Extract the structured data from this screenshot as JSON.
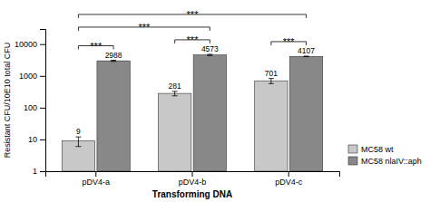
{
  "chart_data": {
    "type": "bar",
    "categories": [
      "pDV4-a",
      "pDV4-b",
      "pDV4-c"
    ],
    "series": [
      {
        "name": "MC58 wt",
        "color": "#c8c8c8",
        "values": [
          9,
          281,
          701
        ],
        "errors": [
          3,
          45,
          130
        ]
      },
      {
        "name": "MC58 nlaIV::aph",
        "color": "#888888",
        "values": [
          2988,
          4573,
          4107
        ],
        "errors": [
          120,
          220,
          90
        ]
      }
    ],
    "xlabel": "Transforming DNA",
    "ylabel": "Resistant CFU/10E10 total CFU",
    "log": "y",
    "ylim": [
      1,
      30000
    ],
    "yticks": [
      1,
      10,
      100,
      1000,
      10000
    ],
    "legend": "lower right",
    "data_labels": true,
    "annotations": [
      {
        "text": "***",
        "between": [
          [
            "pDV4-a",
            "MC58 wt"
          ],
          [
            "pDV4-a",
            "MC58 nlaIV::aph"
          ]
        ]
      },
      {
        "text": "***",
        "between": [
          [
            "pDV4-b",
            "MC58 wt"
          ],
          [
            "pDV4-b",
            "MC58 nlaIV::aph"
          ]
        ]
      },
      {
        "text": "***",
        "between": [
          [
            "pDV4-c",
            "MC58 wt"
          ],
          [
            "pDV4-c",
            "MC58 nlaIV::aph"
          ]
        ]
      },
      {
        "text": "***",
        "between": [
          [
            "pDV4-a",
            "MC58 wt"
          ],
          [
            "pDV4-b",
            "MC58 nlaIV::aph"
          ]
        ]
      },
      {
        "text": "***",
        "between": [
          [
            "pDV4-a",
            "MC58 wt"
          ],
          [
            "pDV4-c",
            "MC58 nlaIV::aph"
          ]
        ]
      }
    ]
  }
}
